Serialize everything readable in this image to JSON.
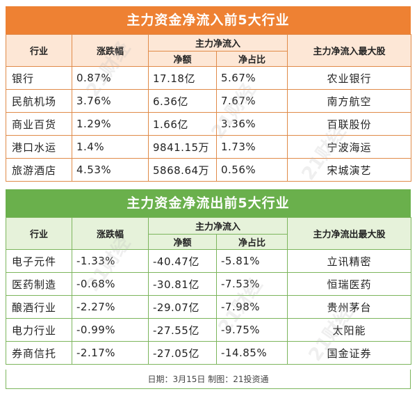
{
  "inflow": {
    "title": "主力资金净流入前5大行业",
    "headers": {
      "industry": "行业",
      "change": "涨跌幅",
      "mainflow": "主力净流入",
      "net": "净额",
      "ratio": "净占比",
      "top_stock": "主力净流入最大股"
    },
    "rows": [
      {
        "industry": "银行",
        "change": "0.87%",
        "net": "17.18亿",
        "ratio": "5.67%",
        "stock": "农业银行"
      },
      {
        "industry": "民航机场",
        "change": "3.76%",
        "net": "6.36亿",
        "ratio": "7.67%",
        "stock": "南方航空"
      },
      {
        "industry": "商业百货",
        "change": "1.29%",
        "net": "1.66亿",
        "ratio": "3.36%",
        "stock": "百联股份"
      },
      {
        "industry": "港口水运",
        "change": "1.4%",
        "net": "9841.15万",
        "ratio": "1.73%",
        "stock": "宁波海运"
      },
      {
        "industry": "旅游酒店",
        "change": "4.53%",
        "net": "5868.64万",
        "ratio": "0.56%",
        "stock": "宋城演艺"
      }
    ]
  },
  "outflow": {
    "title": "主力资金净流出前5大行业",
    "headers": {
      "industry": "行业",
      "change": "涨跌幅",
      "mainflow": "主力净流入",
      "net": "净额",
      "ratio": "净占比",
      "top_stock": "主力净流出最大股"
    },
    "rows": [
      {
        "industry": "电子元件",
        "change": "-1.33%",
        "net": "-40.47亿",
        "ratio": "-5.81%",
        "stock": "立讯精密"
      },
      {
        "industry": "医药制造",
        "change": "-0.68%",
        "net": "-30.81亿",
        "ratio": "-7.53%",
        "stock": "恒瑞医药"
      },
      {
        "industry": "酿酒行业",
        "change": "-2.27%",
        "net": "-29.07亿",
        "ratio": "-7.98%",
        "stock": "贵州茅台"
      },
      {
        "industry": "电力行业",
        "change": "-0.99%",
        "net": "-27.55亿",
        "ratio": "-9.75%",
        "stock": "太阳能"
      },
      {
        "industry": "券商信托",
        "change": "-2.17%",
        "net": "-27.05亿",
        "ratio": "-14.85%",
        "stock": "国金证券"
      }
    ]
  },
  "footer": "日期：3月15日 制图：21投资通",
  "colors": {
    "inflow_accent": "#ee8133",
    "outflow_accent": "#6ab04c"
  }
}
